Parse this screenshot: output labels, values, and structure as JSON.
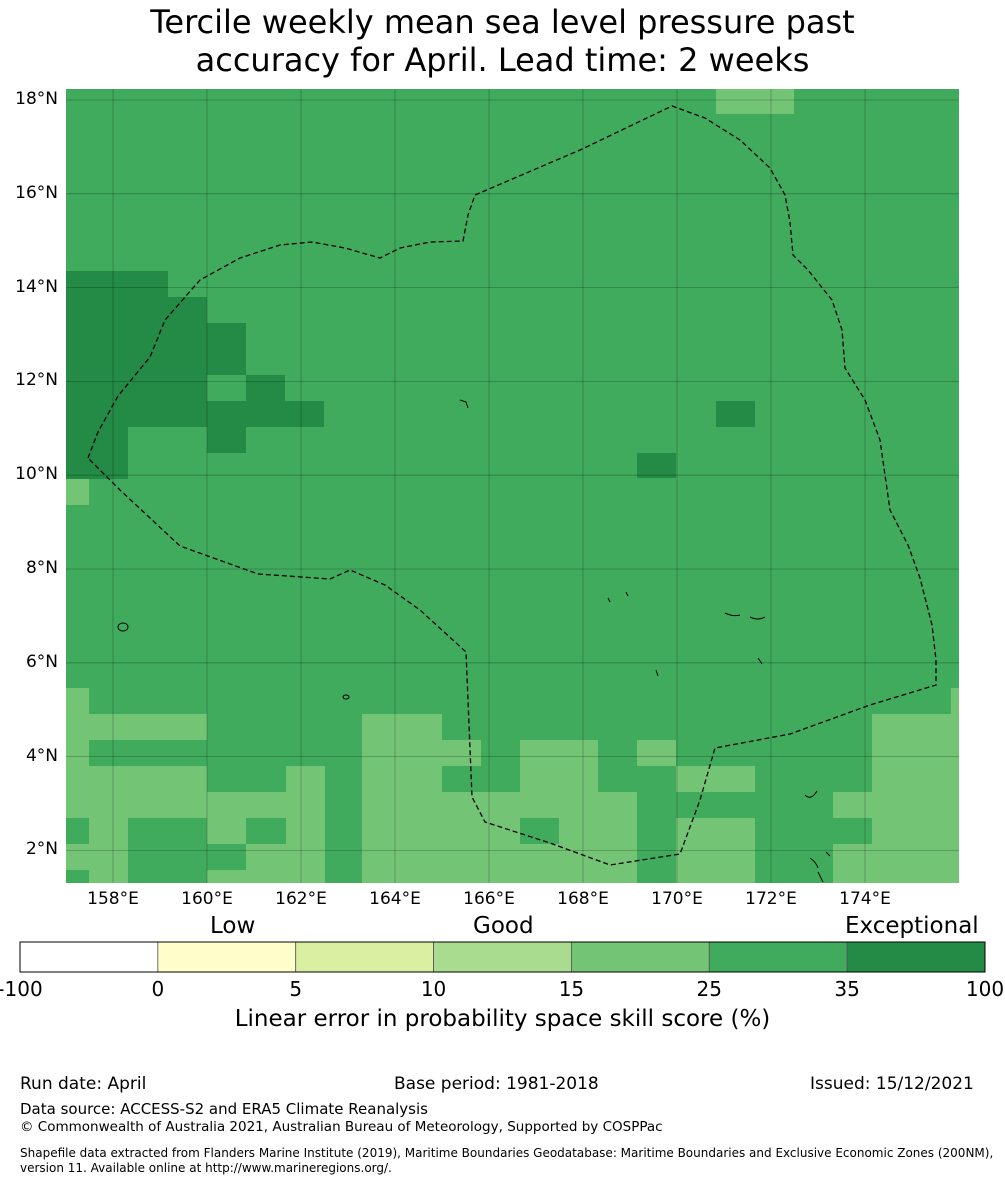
{
  "title_line1": "Tercile weekly mean sea level pressure past",
  "title_line2": "accuracy for April. Lead time: 2 weeks",
  "map": {
    "lat_labels": [
      "18°N",
      "16°N",
      "14°N",
      "12°N",
      "10°N",
      "8°N",
      "6°N",
      "4°N",
      "2°N"
    ],
    "lon_labels": [
      "158°E",
      "160°E",
      "162°E",
      "164°E",
      "166°E",
      "168°E",
      "170°E",
      "172°E",
      "174°E"
    ],
    "lat_values": [
      18,
      16,
      14,
      12,
      10,
      8,
      6,
      4,
      2
    ],
    "lon_values": [
      158,
      160,
      162,
      164,
      166,
      168,
      170,
      172,
      174
    ],
    "lon_range": [
      157,
      176
    ],
    "lat_range": [
      1.4,
      18.3
    ],
    "grid": true,
    "eez_boundary": "dashed",
    "legend_colors": {
      "35-100": "#238b45",
      "25-35": "#41ab5d",
      "15-25": "#74c476",
      "10-15": "#a9dc8e",
      "5-10": "#d9f0a3",
      "0-5": "#ffffcc",
      "-100-0": "#ffffff"
    }
  },
  "colorbar": {
    "category_labels": [
      "Low",
      "Good",
      "Exceptional"
    ],
    "ticks": [
      "-100",
      "0",
      "5",
      "10",
      "15",
      "25",
      "35",
      "100"
    ],
    "colors": [
      "#ffffff",
      "#ffffcc",
      "#d9f0a3",
      "#a9dc8e",
      "#74c476",
      "#41ab5d",
      "#238b45"
    ],
    "label": "Linear error in probability space skill score (%)"
  },
  "footer": {
    "run_date": "Run date: April",
    "base_period": "Base period: 1981-2018",
    "issued": "Issued: 15/12/2021",
    "data_source": "Data source: ACCESS-S2 and ERA5 Climate Reanalysis",
    "copyright": "© Commonwealth of Australia 2021, Australian Bureau of Meteorology, Supported by COSPPac",
    "shapefile_line1": "Shapefile data extracted from Flanders Marine Institute (2019), Maritime Boundaries Geodatabase: Maritime Boundaries and Exclusive Economic Zones (200NM),",
    "shapefile_line2": "version 11. Available online at http://www.marineregions.org/."
  }
}
